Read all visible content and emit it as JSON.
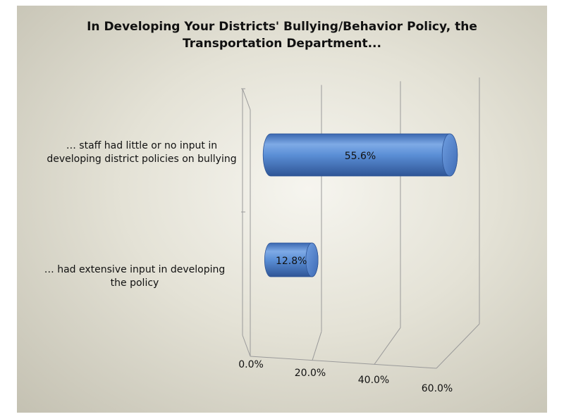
{
  "chart_data": {
    "type": "bar",
    "orientation": "horizontal",
    "style": "3d-cylinder",
    "title_lines": [
      "In Developing Your Districts' Bullying/Behavior Policy, the",
      "Transportation Department..."
    ],
    "categories": [
      {
        "lines": [
          "… staff had little or no input in",
          "developing district policies on bullying"
        ]
      },
      {
        "lines": [
          "… had extensive input in developing",
          "the policy"
        ]
      }
    ],
    "values": [
      55.6,
      12.8
    ],
    "data_labels": [
      "55.6%",
      "12.8%"
    ],
    "ticks": [
      "0.0%",
      "20.0%",
      "40.0%",
      "60.0%"
    ],
    "xlim": [
      0,
      60
    ],
    "grid": true,
    "bar_color": "#5b8fd6",
    "legend": "none"
  }
}
